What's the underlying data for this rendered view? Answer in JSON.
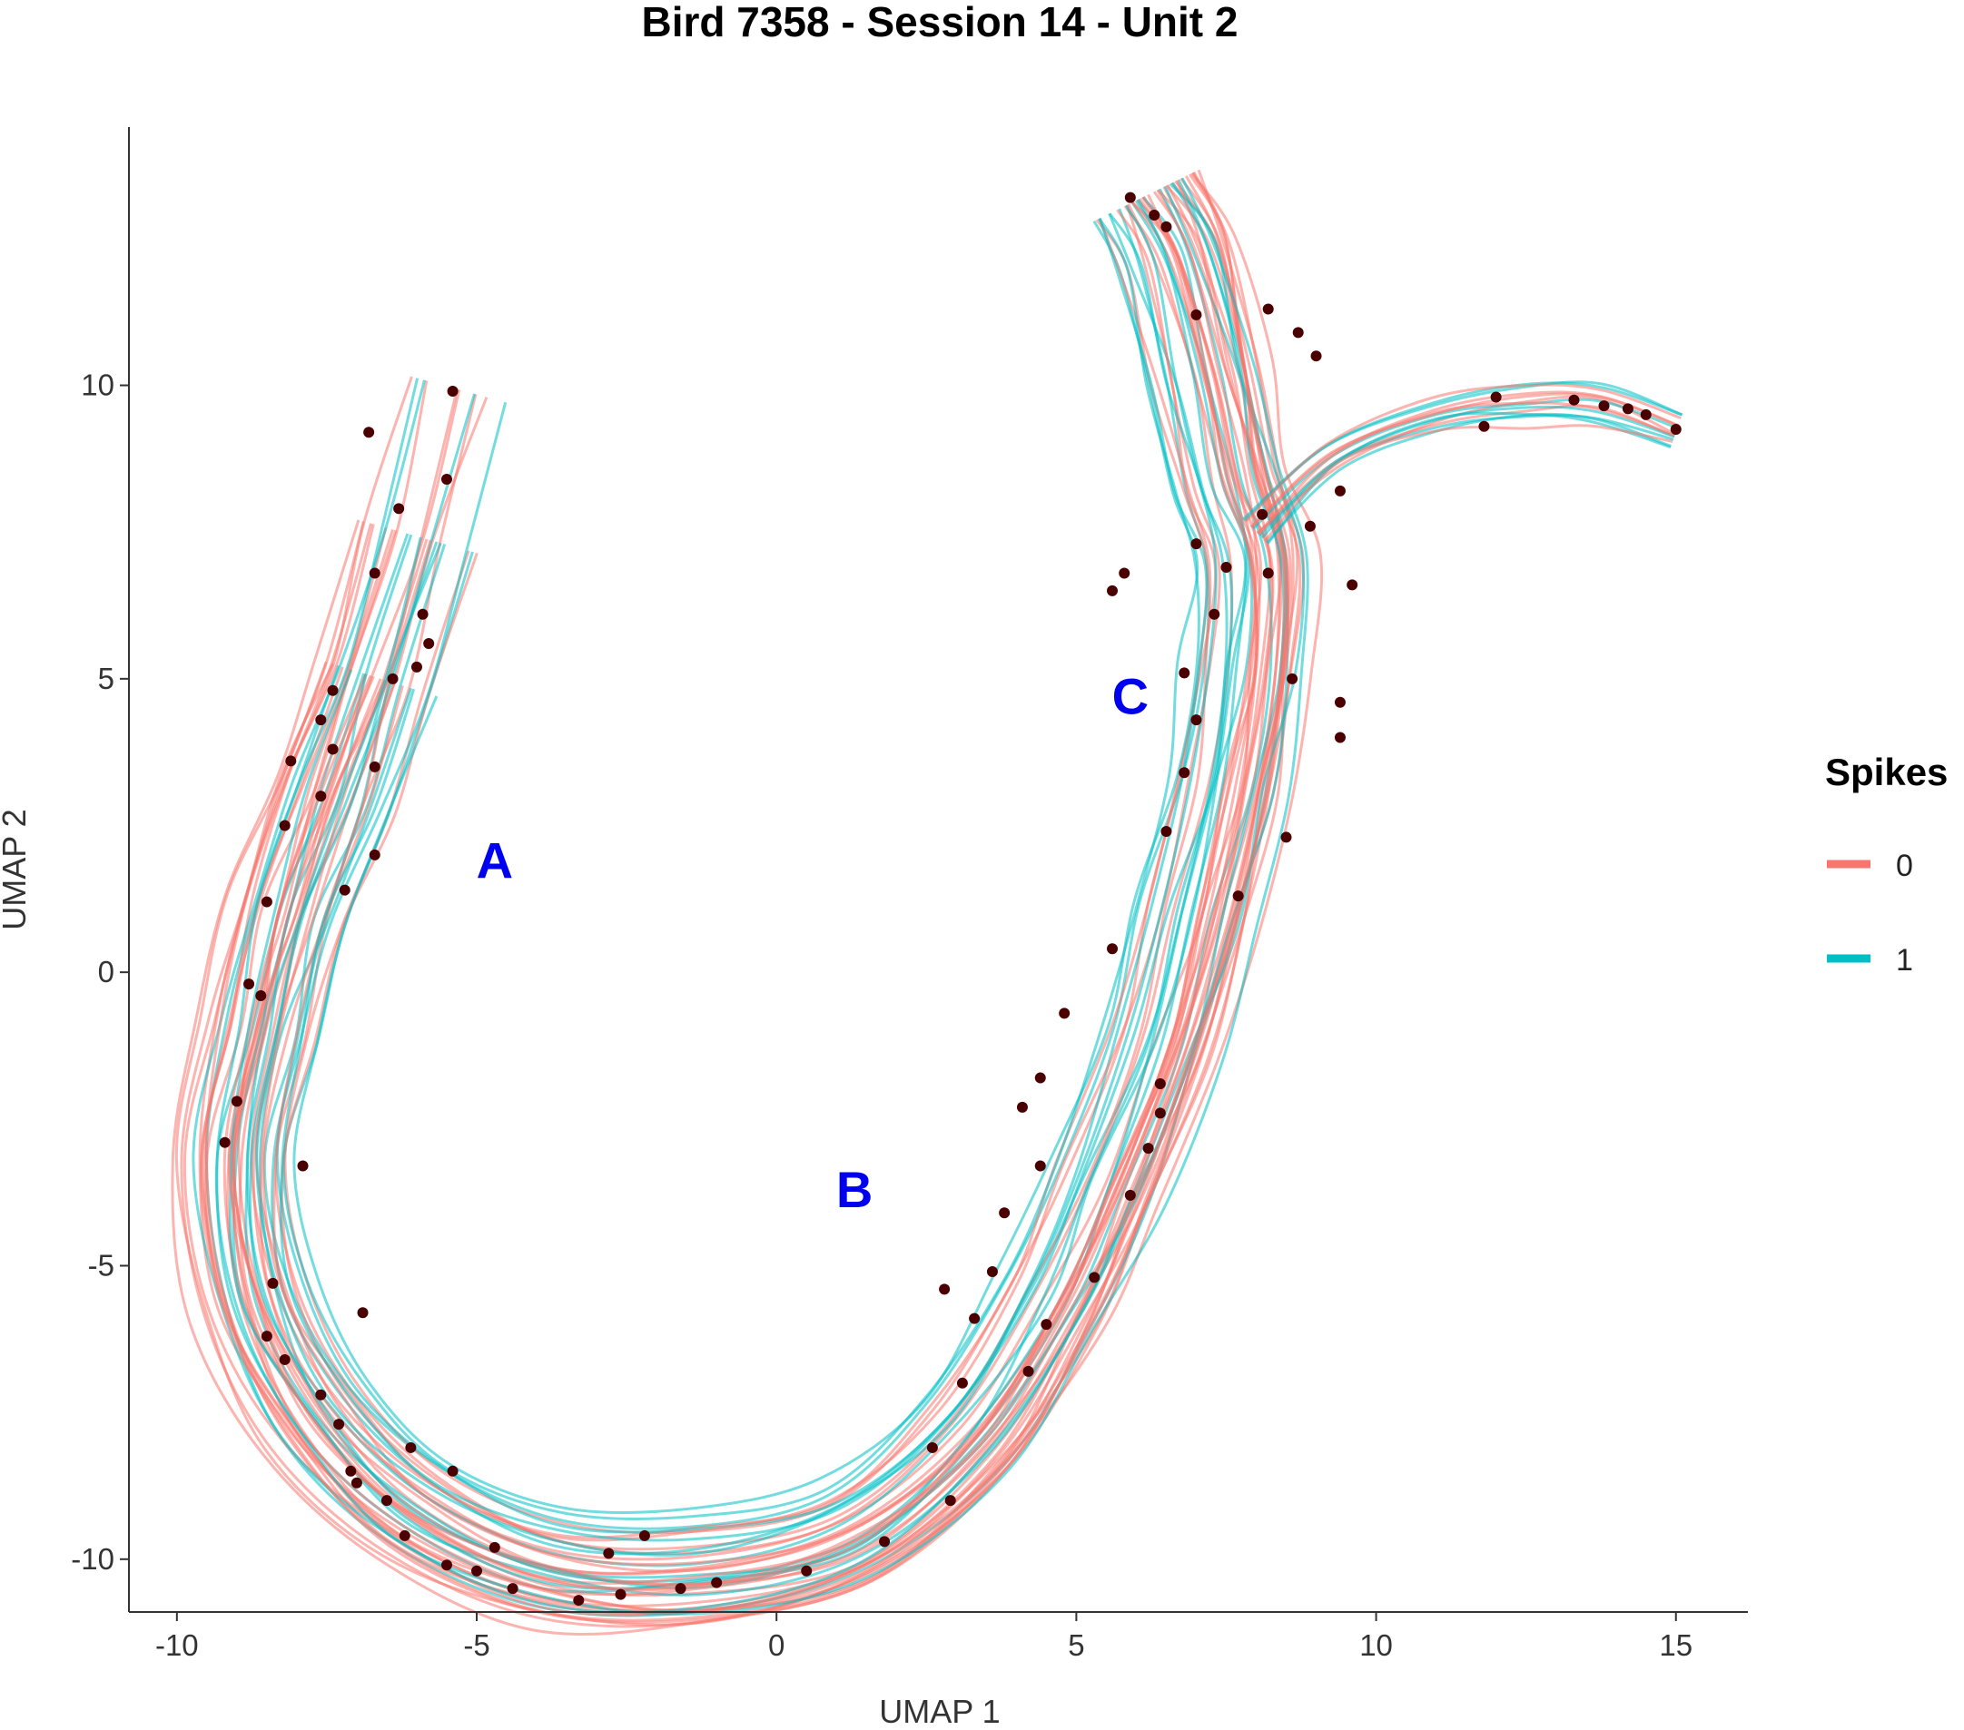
{
  "chart_data": {
    "type": "line",
    "title": "Bird 7358 - Session 14 - Unit 2",
    "xlabel": "UMAP 1",
    "ylabel": "UMAP 2",
    "xlim": [
      -10.8,
      16.2
    ],
    "ylim": [
      -10.9,
      14.4
    ],
    "xticks": [
      -10,
      -5,
      0,
      5,
      10,
      15
    ],
    "yticks": [
      -10,
      -5,
      0,
      5,
      10
    ],
    "grid": false,
    "legend": {
      "title": "Spikes",
      "placement": "right",
      "entries": [
        {
          "label": "0",
          "color": "#f8766d"
        },
        {
          "label": "1",
          "color": "#00bfc4"
        }
      ]
    },
    "annotations": [
      {
        "text": "A",
        "x": -4.7,
        "y": 1.6
      },
      {
        "text": "B",
        "x": 1.3,
        "y": -4.0
      },
      {
        "text": "C",
        "x": 5.9,
        "y": 4.4
      }
    ],
    "backbone": [
      [
        -5.2,
        9.9
      ],
      [
        -5.9,
        7.4
      ],
      [
        -6.6,
        5.0
      ],
      [
        -7.3,
        3.0
      ],
      [
        -8.0,
        1.0
      ],
      [
        -8.5,
        -1.0
      ],
      [
        -8.9,
        -3.2
      ],
      [
        -8.6,
        -5.5
      ],
      [
        -7.6,
        -7.5
      ],
      [
        -6.0,
        -9.1
      ],
      [
        -3.8,
        -10.1
      ],
      [
        -1.3,
        -10.2
      ],
      [
        1.2,
        -9.6
      ],
      [
        3.2,
        -7.9
      ],
      [
        4.6,
        -5.6
      ],
      [
        5.5,
        -3.6
      ],
      [
        6.4,
        -1.2
      ],
      [
        7.0,
        1.0
      ],
      [
        7.5,
        3.2
      ],
      [
        7.8,
        5.2
      ],
      [
        7.9,
        7.0
      ],
      [
        7.5,
        8.4
      ],
      [
        7.1,
        10.2
      ],
      [
        6.6,
        12.2
      ],
      [
        6.1,
        13.2
      ]
    ],
    "side_branch": [
      [
        8.0,
        7.5
      ],
      [
        9.3,
        8.8
      ],
      [
        11.0,
        9.5
      ],
      [
        12.5,
        9.7
      ],
      [
        13.7,
        9.65
      ],
      [
        15.0,
        9.2
      ]
    ],
    "spike_points": [
      [
        -5.4,
        9.9
      ],
      [
        -6.8,
        9.2
      ],
      [
        -6.3,
        7.9
      ],
      [
        -5.5,
        8.4
      ],
      [
        -6.7,
        6.8
      ],
      [
        -5.8,
        5.6
      ],
      [
        -6.4,
        5.0
      ],
      [
        -7.4,
        4.8
      ],
      [
        -6.7,
        3.5
      ],
      [
        -7.6,
        3.0
      ],
      [
        -8.2,
        2.5
      ],
      [
        -6.7,
        2.0
      ],
      [
        -8.5,
        1.2
      ],
      [
        -7.2,
        1.4
      ],
      [
        -8.8,
        -0.2
      ],
      [
        -9.0,
        -2.2
      ],
      [
        -9.2,
        -2.9
      ],
      [
        -8.4,
        -5.3
      ],
      [
        -8.5,
        -6.2
      ],
      [
        -8.2,
        -6.6
      ],
      [
        -7.6,
        -7.2
      ],
      [
        -7.3,
        -7.7
      ],
      [
        -7.1,
        -8.5
      ],
      [
        -7.0,
        -8.7
      ],
      [
        -6.5,
        -9.0
      ],
      [
        -6.2,
        -9.6
      ],
      [
        -5.5,
        -10.1
      ],
      [
        -5.0,
        -10.2
      ],
      [
        -4.4,
        -10.5
      ],
      [
        -3.3,
        -10.7
      ],
      [
        -2.6,
        -10.6
      ],
      [
        -1.6,
        -10.5
      ],
      [
        -1.0,
        -10.4
      ],
      [
        0.5,
        -10.2
      ],
      [
        1.8,
        -9.7
      ],
      [
        2.6,
        -8.1
      ],
      [
        3.1,
        -7.0
      ],
      [
        3.3,
        -5.9
      ],
      [
        2.8,
        -5.4
      ],
      [
        3.6,
        -5.1
      ],
      [
        3.8,
        -4.1
      ],
      [
        4.4,
        -3.3
      ],
      [
        4.1,
        -2.3
      ],
      [
        4.4,
        -1.8
      ],
      [
        4.8,
        -0.7
      ],
      [
        5.6,
        0.4
      ],
      [
        6.5,
        2.4
      ],
      [
        6.8,
        3.4
      ],
      [
        7.0,
        4.3
      ],
      [
        6.8,
        5.1
      ],
      [
        7.3,
        6.1
      ],
      [
        7.5,
        6.9
      ],
      [
        7.0,
        7.3
      ],
      [
        5.6,
        6.5
      ],
      [
        5.8,
        6.8
      ],
      [
        7.0,
        11.2
      ],
      [
        6.3,
        12.9
      ],
      [
        5.9,
        13.2
      ],
      [
        6.5,
        12.7
      ],
      [
        8.2,
        11.3
      ],
      [
        8.7,
        10.9
      ],
      [
        9.0,
        10.5
      ],
      [
        9.4,
        8.2
      ],
      [
        8.9,
        7.6
      ],
      [
        8.1,
        7.8
      ],
      [
        8.2,
        6.8
      ],
      [
        8.6,
        5.0
      ],
      [
        9.6,
        6.6
      ],
      [
        9.4,
        4.6
      ],
      [
        9.4,
        4.0
      ],
      [
        8.5,
        2.3
      ],
      [
        7.7,
        1.3
      ],
      [
        11.8,
        9.3
      ],
      [
        12.0,
        9.8
      ],
      [
        13.3,
        9.75
      ],
      [
        13.8,
        9.65
      ],
      [
        14.2,
        9.6
      ],
      [
        14.5,
        9.5
      ],
      [
        15.0,
        9.25
      ],
      [
        6.4,
        -2.4
      ],
      [
        6.2,
        -3.0
      ],
      [
        5.9,
        -3.8
      ],
      [
        6.4,
        -1.9
      ],
      [
        5.3,
        -5.2
      ],
      [
        4.5,
        -6.0
      ],
      [
        4.2,
        -6.8
      ],
      [
        2.9,
        -9.0
      ],
      [
        -2.2,
        -9.6
      ],
      [
        -2.8,
        -9.9
      ],
      [
        -4.7,
        -9.8
      ],
      [
        -5.4,
        -8.5
      ],
      [
        -6.1,
        -8.1
      ],
      [
        -6.9,
        -5.8
      ],
      [
        -7.9,
        -3.3
      ],
      [
        -8.1,
        3.6
      ],
      [
        -7.6,
        4.3
      ],
      [
        -8.6,
        -0.4
      ],
      [
        -5.9,
        6.1
      ],
      [
        -6.0,
        5.2
      ],
      [
        -7.4,
        3.8
      ]
    ]
  }
}
